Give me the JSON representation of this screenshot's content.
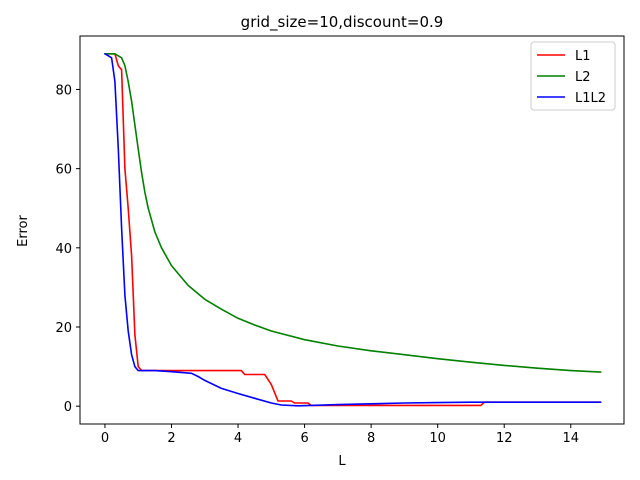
{
  "chart_data": {
    "type": "line",
    "title": "grid_size=10,discount=0.9",
    "xlabel": "L",
    "ylabel": "Error",
    "xlim": [
      -0.75,
      15.6
    ],
    "ylim": [
      -4.5,
      93.5
    ],
    "xticks": [
      0,
      2,
      4,
      6,
      8,
      10,
      12,
      14
    ],
    "yticks": [
      0,
      20,
      40,
      60,
      80
    ],
    "grid": false,
    "legend_position": "top-right",
    "series": [
      {
        "name": "L1",
        "color": "#ff0000",
        "points": [
          [
            0,
            89
          ],
          [
            0.3,
            89
          ],
          [
            0.4,
            86
          ],
          [
            0.5,
            85
          ],
          [
            0.6,
            60
          ],
          [
            0.7,
            50
          ],
          [
            0.8,
            38
          ],
          [
            0.9,
            18
          ],
          [
            1.0,
            10
          ],
          [
            1.1,
            9
          ],
          [
            2.0,
            9
          ],
          [
            3.0,
            9
          ],
          [
            4.1,
            9
          ],
          [
            4.2,
            8
          ],
          [
            4.8,
            8
          ],
          [
            5.0,
            5.5
          ],
          [
            5.2,
            1.3
          ],
          [
            5.6,
            1.3
          ],
          [
            5.7,
            0.8
          ],
          [
            6.1,
            0.8
          ],
          [
            6.2,
            0.2
          ],
          [
            8.0,
            0.2
          ],
          [
            10.0,
            0.2
          ],
          [
            11.3,
            0.2
          ],
          [
            11.4,
            1
          ],
          [
            13.0,
            1
          ],
          [
            14.9,
            1
          ]
        ]
      },
      {
        "name": "L2",
        "color": "#008000",
        "points": [
          [
            0,
            89
          ],
          [
            0.3,
            89
          ],
          [
            0.5,
            88
          ],
          [
            0.6,
            86
          ],
          [
            0.7,
            82
          ],
          [
            0.8,
            77
          ],
          [
            0.9,
            71
          ],
          [
            1.0,
            65
          ],
          [
            1.1,
            59
          ],
          [
            1.2,
            54
          ],
          [
            1.3,
            50
          ],
          [
            1.5,
            44
          ],
          [
            1.7,
            40
          ],
          [
            2.0,
            35.5
          ],
          [
            2.5,
            30.5
          ],
          [
            3.0,
            27
          ],
          [
            3.5,
            24.5
          ],
          [
            4.0,
            22.2
          ],
          [
            4.5,
            20.5
          ],
          [
            5.0,
            19
          ],
          [
            6.0,
            16.8
          ],
          [
            7.0,
            15.2
          ],
          [
            8.0,
            14
          ],
          [
            9.0,
            13
          ],
          [
            10.0,
            12
          ],
          [
            11.0,
            11.1
          ],
          [
            12.0,
            10.3
          ],
          [
            13.0,
            9.6
          ],
          [
            14.0,
            9
          ],
          [
            14.9,
            8.6
          ]
        ]
      },
      {
        "name": "L1L2",
        "color": "#0000ff",
        "points": [
          [
            0,
            89
          ],
          [
            0.2,
            88
          ],
          [
            0.3,
            82
          ],
          [
            0.4,
            65
          ],
          [
            0.5,
            45
          ],
          [
            0.6,
            28
          ],
          [
            0.7,
            19
          ],
          [
            0.8,
            13
          ],
          [
            0.9,
            10
          ],
          [
            1.0,
            9
          ],
          [
            1.5,
            9
          ],
          [
            2.0,
            8.7
          ],
          [
            2.6,
            8.3
          ],
          [
            2.8,
            7.5
          ],
          [
            3.0,
            6.5
          ],
          [
            3.5,
            4.5
          ],
          [
            4.0,
            3.2
          ],
          [
            4.5,
            2
          ],
          [
            5.0,
            0.8
          ],
          [
            5.3,
            0.3
          ],
          [
            5.8,
            0.1
          ],
          [
            6.2,
            0.2
          ],
          [
            7.0,
            0.4
          ],
          [
            8.0,
            0.6
          ],
          [
            9.0,
            0.8
          ],
          [
            10.0,
            0.9
          ],
          [
            11.0,
            1
          ],
          [
            12.0,
            1
          ],
          [
            14.9,
            1
          ]
        ]
      }
    ]
  }
}
